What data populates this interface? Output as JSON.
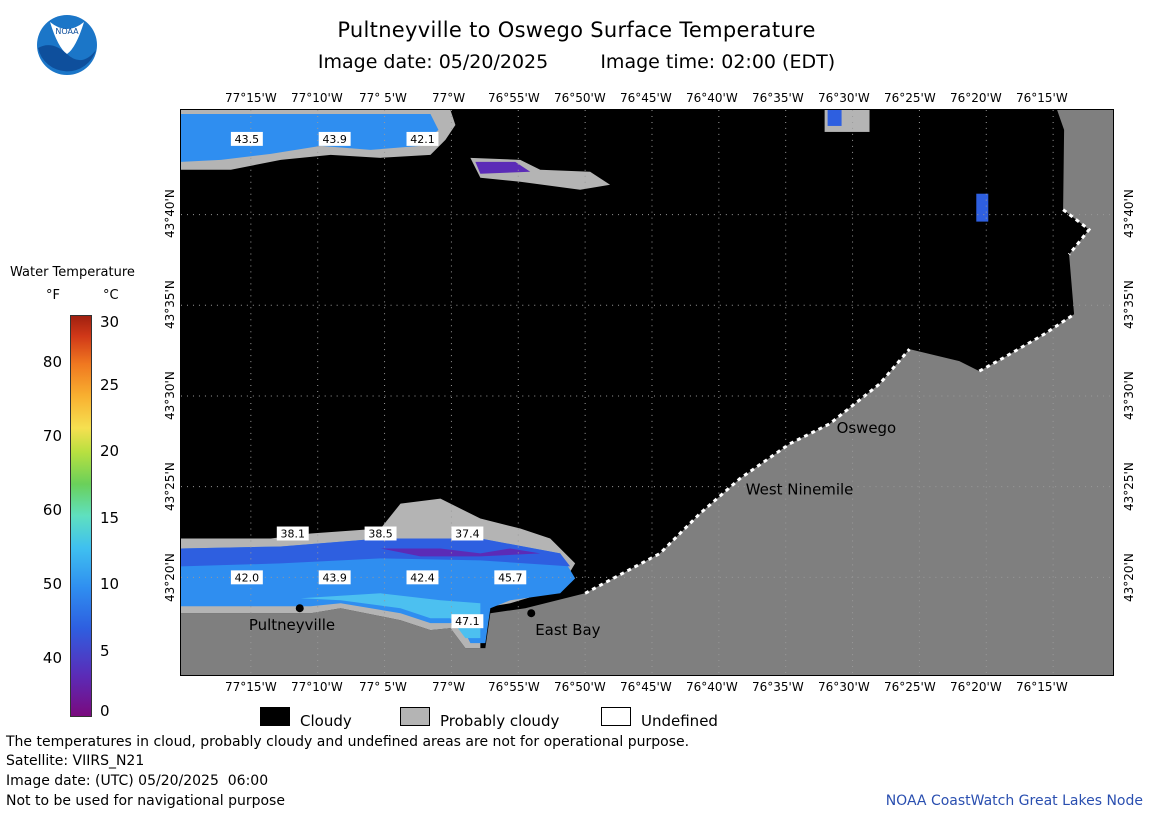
{
  "title": "Pultneyville to Oswego Surface Temperature",
  "image_date_label": "Image date: 05/20/2025",
  "image_time_label": "Image time: 02:00 (EDT)",
  "logo_text": "NOAA",
  "longitude_labels": [
    "77°15'W",
    "77°10'W",
    "77° 5'W",
    "77°W",
    "76°55'W",
    "76°50'W",
    "76°45'W",
    "76°40'W",
    "76°35'W",
    "76°30'W",
    "76°25'W",
    "76°20'W",
    "76°15'W"
  ],
  "latitude_labels": [
    "43°40'N",
    "43°35'N",
    "43°30'N",
    "43°25'N",
    "43°20'N"
  ],
  "legend": {
    "title": "Water Temperature",
    "unit_f": "°F",
    "unit_c": "°C",
    "ticks_f": [
      "80",
      "70",
      "60",
      "50",
      "40"
    ],
    "ticks_c": [
      "30",
      "25",
      "20",
      "15",
      "10",
      "5",
      "0"
    ],
    "range_f": [
      32,
      86
    ],
    "range_c": [
      0,
      30
    ]
  },
  "map": {
    "colors": {
      "cloudy": "#000000",
      "probably_cloudy": "#b4b4b4",
      "land": "#7f7f7f",
      "undefined": "#ffffff"
    },
    "temperature_labels": [
      "43.5",
      "43.9",
      "42.1",
      "38.1",
      "38.5",
      "37.4",
      "42.0",
      "43.9",
      "42.4",
      "45.7",
      "47.1"
    ],
    "places": [
      "Pultneyville",
      "East Bay",
      "Oswego",
      "West Ninemile"
    ]
  },
  "key": {
    "cloudy": "Cloudy",
    "probably_cloudy": "Probably cloudy",
    "undefined": "Undefined"
  },
  "footer": {
    "disclaimer": "The temperatures in cloud, probably cloudy and undefined areas are not for operational purpose.",
    "satellite": "Satellite: VIIRS_N21",
    "utc": "Image date: (UTC) 05/20/2025  06:00",
    "nav": "Not to be used for navigational purpose",
    "credit": "NOAA CoastWatch Great Lakes Node"
  }
}
